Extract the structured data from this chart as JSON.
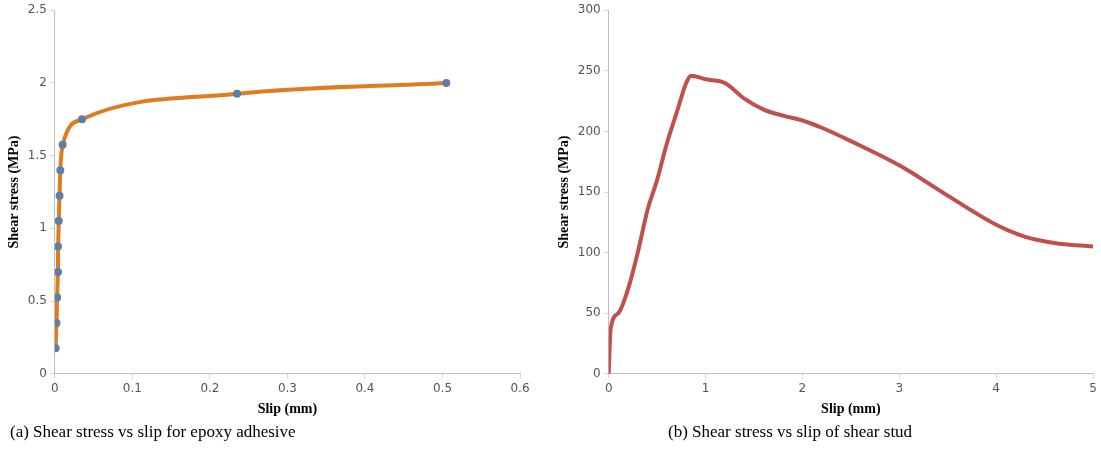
{
  "chart_data": [
    {
      "type": "line",
      "xlabel": "Slip (mm)",
      "ylabel": "Shear stress (MPa)",
      "annotations": [
        "(a) Shear stress vs slip for epoxy adhesive"
      ],
      "xlim": [
        0,
        0.6
      ],
      "xticks": [
        0,
        0.1,
        0.2,
        0.3,
        0.4,
        0.5,
        0.6
      ],
      "ylim": [
        0,
        2.5
      ],
      "yticks": [
        0,
        0.5,
        1,
        1.5,
        2,
        2.5
      ],
      "grid": false,
      "legend": false,
      "marker": "circle",
      "series": [
        {
          "color": "#e07b20",
          "x": [
            0.001,
            0.002,
            0.003,
            0.004,
            0.004,
            0.005,
            0.006,
            0.007,
            0.01,
            0.035,
            0.235,
            0.505
          ],
          "values": [
            0.175,
            0.35,
            0.525,
            0.7,
            0.875,
            1.05,
            1.225,
            1.4,
            1.575,
            1.75,
            1.925,
            2.0
          ]
        }
      ]
    },
    {
      "type": "line",
      "xlabel": "Slip (mm)",
      "ylabel": "Shear stress (MPa)",
      "annotations": [
        "(b) Shear stress vs slip of shear stud"
      ],
      "xlim": [
        0,
        5
      ],
      "xticks": [
        0,
        1,
        2,
        3,
        4,
        5
      ],
      "ylim": [
        0,
        300
      ],
      "yticks": [
        0,
        50,
        100,
        150,
        200,
        250,
        300
      ],
      "grid": false,
      "legend": false,
      "marker": "none",
      "series": [
        {
          "color": "#c0504d",
          "x": [
            0,
            0.02,
            0.1,
            0.2,
            0.3,
            0.4,
            0.5,
            0.6,
            0.7,
            0.8,
            0.85,
            1.0,
            1.2,
            1.4,
            1.6,
            1.8,
            2.0,
            2.2,
            2.5,
            3.0,
            3.5,
            4.0,
            4.3,
            4.6,
            5.0
          ],
          "values": [
            0,
            37,
            50,
            70,
            100,
            135,
            160,
            190,
            215,
            240,
            246,
            243,
            240,
            227,
            218,
            213,
            209,
            203,
            192,
            172,
            147,
            123,
            113,
            108,
            105
          ]
        }
      ]
    }
  ]
}
